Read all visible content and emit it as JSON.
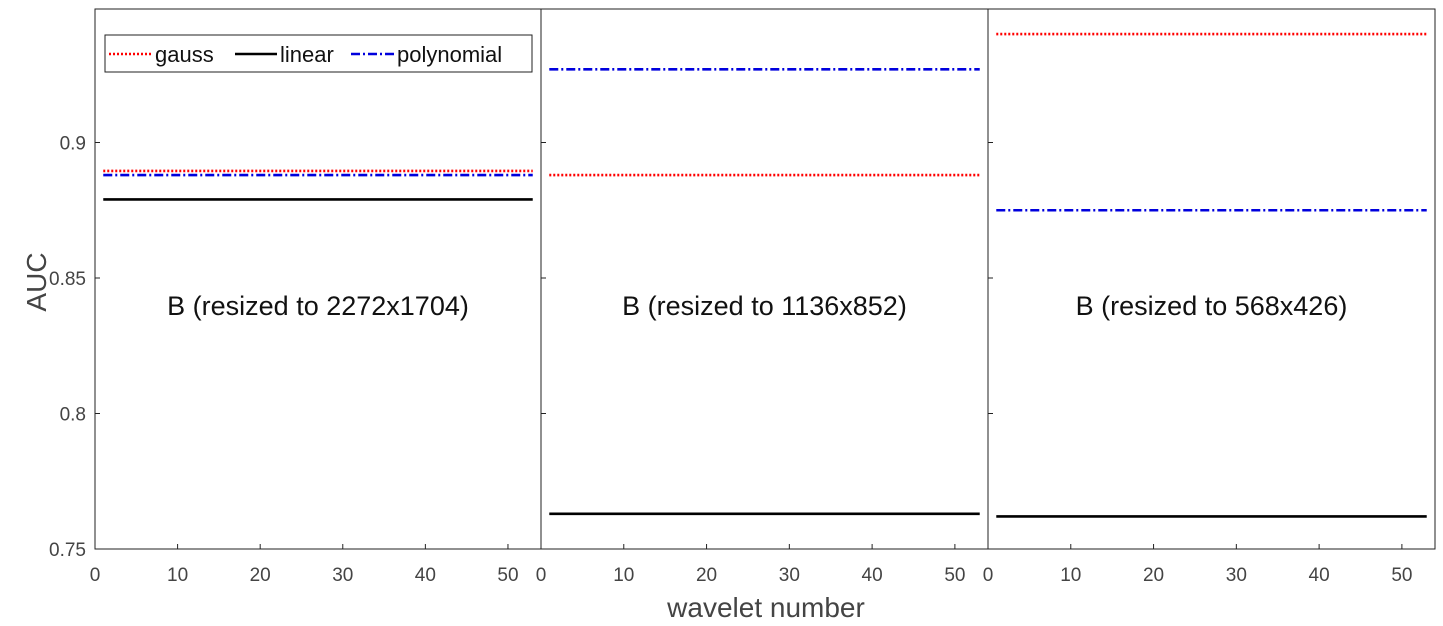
{
  "chart_data": {
    "type": "line",
    "ylabel": "AUC",
    "xlabel": "wavelet number",
    "ylim": [
      0.75,
      0.945
    ],
    "xlim": [
      0,
      54
    ],
    "yticks": [
      0.75,
      0.8,
      0.85,
      0.9
    ],
    "ytick_labels": [
      "0.75",
      "0.8",
      "0.85",
      "0.9"
    ],
    "xticks": [
      0,
      10,
      20,
      30,
      40,
      50
    ],
    "xtick_labels": [
      "0",
      "10",
      "20",
      "30",
      "40",
      "50"
    ],
    "legend": {
      "placement": "top-left of first panel",
      "entries": [
        "gauss",
        "linear",
        "polynomial"
      ]
    },
    "series_styles": {
      "gauss": {
        "color": "#ff0000",
        "dash": "dotted"
      },
      "linear": {
        "color": "#000000",
        "dash": "solid"
      },
      "polynomial": {
        "color": "#0000dd",
        "dash": "dashdot"
      }
    },
    "panels": [
      {
        "label": "B (resized to 2272x1704)",
        "x": [
          1,
          53
        ],
        "series": [
          {
            "name": "gauss",
            "values": [
              0.8895,
              0.8895
            ]
          },
          {
            "name": "linear",
            "values": [
              0.879,
              0.879
            ]
          },
          {
            "name": "polynomial",
            "values": [
              0.888,
              0.888
            ]
          }
        ]
      },
      {
        "label": "B (resized to 1136x852)",
        "x": [
          1,
          53
        ],
        "series": [
          {
            "name": "gauss",
            "values": [
              0.888,
              0.888
            ]
          },
          {
            "name": "linear",
            "values": [
              0.763,
              0.763
            ]
          },
          {
            "name": "polynomial",
            "values": [
              0.927,
              0.927
            ]
          }
        ]
      },
      {
        "label": "B (resized to 568x426)",
        "x": [
          1,
          53
        ],
        "series": [
          {
            "name": "gauss",
            "values": [
              0.94,
              0.94
            ]
          },
          {
            "name": "linear",
            "values": [
              0.762,
              0.762
            ]
          },
          {
            "name": "polynomial",
            "values": [
              0.875,
              0.875
            ]
          }
        ]
      }
    ]
  }
}
